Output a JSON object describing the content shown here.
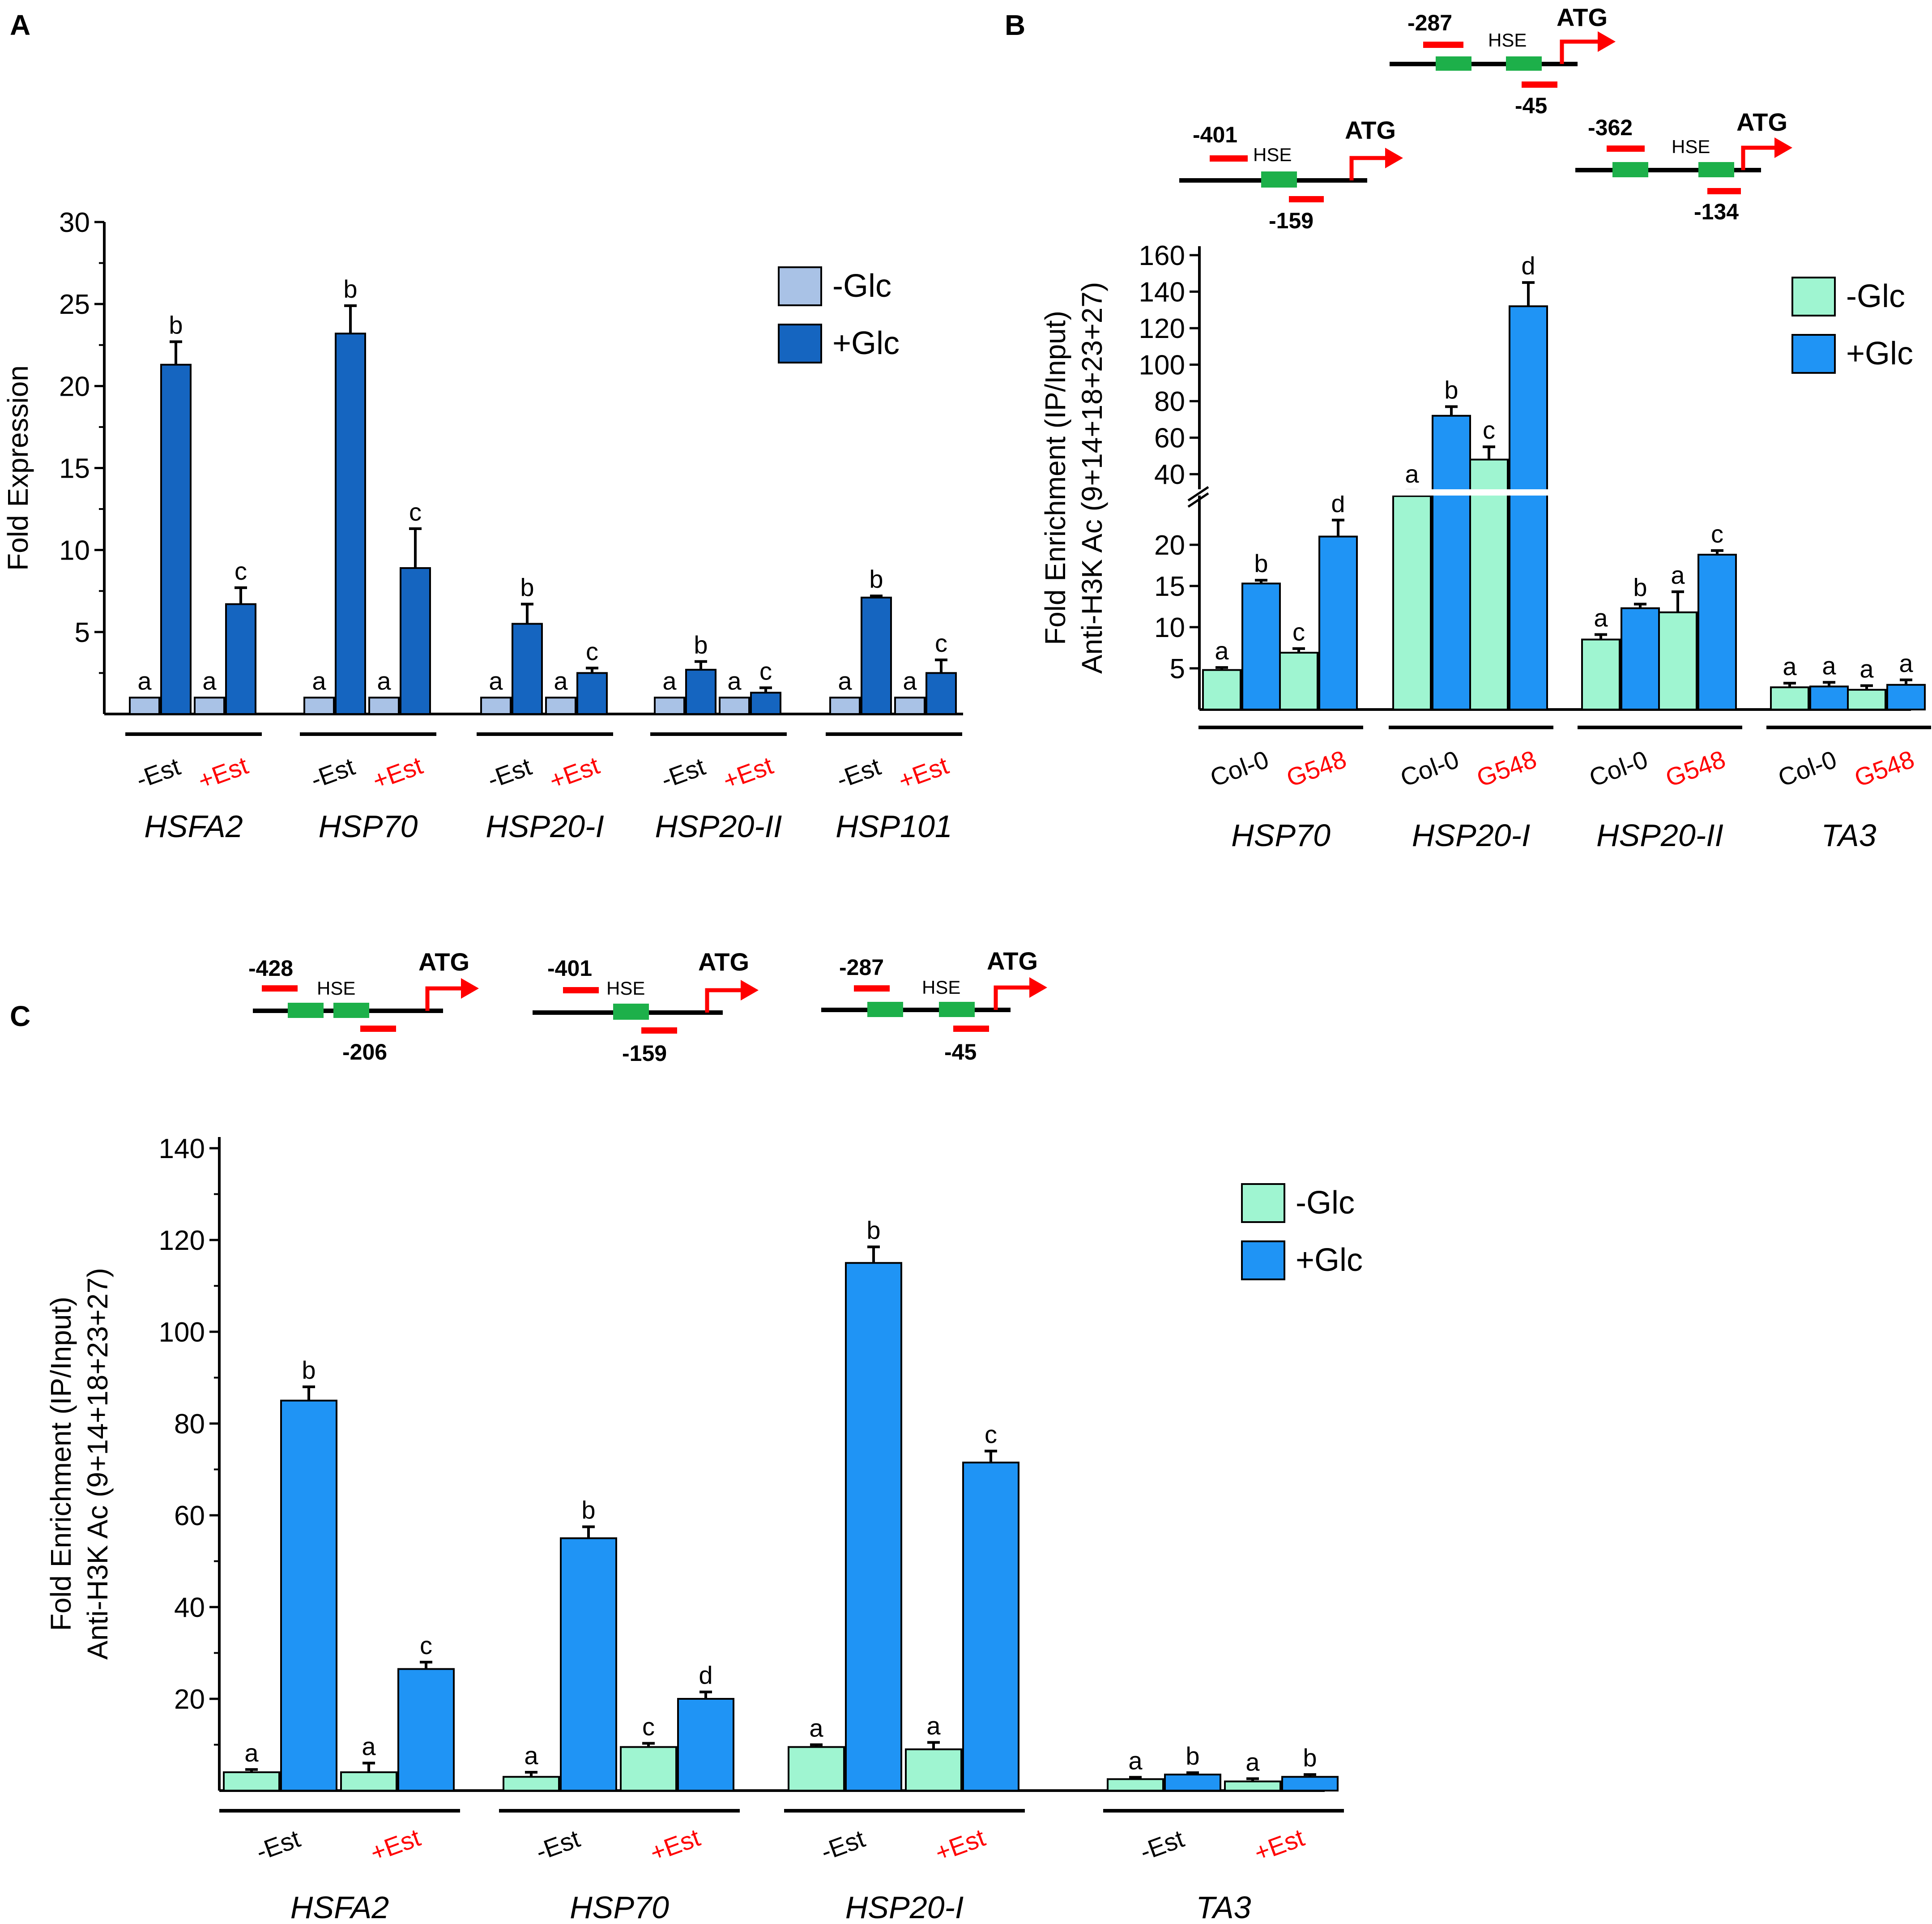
{
  "panels": {
    "A": {
      "label": "A"
    },
    "B": {
      "label": "B"
    },
    "C": {
      "label": "C"
    }
  },
  "colors": {
    "a_minus": "#a9c2e6",
    "a_plus": "#1565c0",
    "bc_minus": "#9ff5d1",
    "bc_plus": "#1f94f5",
    "red": "#ff0000",
    "green": "#1db04a"
  },
  "icons": [
    "tss-arrow-icon",
    "hse-box-icon",
    "primer-bar-icon"
  ],
  "schematics": {
    "b1": {
      "left": "-401",
      "right": "-159",
      "hse": "HSE",
      "atg": "ATG"
    },
    "b2": {
      "left": "-287",
      "right": "-45",
      "hse": "HSE",
      "atg": "ATG"
    },
    "b3": {
      "left": "-362",
      "right": "-134",
      "hse": "HSE",
      "atg": "ATG"
    },
    "c1": {
      "left": "-428",
      "right": "-206",
      "hse": "HSE",
      "atg": "ATG"
    },
    "c2": {
      "left": "-401",
      "right": "-159",
      "hse": "HSE",
      "atg": "ATG"
    },
    "c3": {
      "left": "-287",
      "right": "-45",
      "hse": "HSE",
      "atg": "ATG"
    }
  },
  "chart_data": [
    {
      "panel": "A",
      "type": "bar",
      "ylabel": "Fold Expression",
      "ylim": [
        0,
        30
      ],
      "yticks": [
        "5",
        "10",
        "15",
        "20",
        "25",
        "30"
      ],
      "legend": [
        "-Glc",
        "+Glc"
      ],
      "groups": [
        "HSFA2",
        "HSP70",
        "HSP20-I",
        "HSP20-II",
        "HSP101"
      ],
      "subgroups": [
        "-Est",
        "+Est"
      ],
      "series": [
        {
          "name": "-Glc",
          "values": [
            1,
            1,
            1,
            1,
            1,
            1,
            1,
            1,
            1,
            1
          ],
          "errors": [
            0,
            0,
            0,
            0,
            0,
            0,
            0,
            0,
            0,
            0
          ],
          "letters": [
            "a",
            "a",
            "a",
            "a",
            "a",
            "a",
            "a",
            "a",
            "a",
            "a"
          ]
        },
        {
          "name": "+Glc",
          "values": [
            21.3,
            6.7,
            23.2,
            8.9,
            5.5,
            2.5,
            2.7,
            1.3,
            7.1,
            2.5
          ],
          "errors": [
            1.4,
            1.0,
            1.7,
            2.4,
            1.2,
            0.3,
            0.5,
            0.3,
            0.1,
            0.8
          ],
          "letters": [
            "b",
            "c",
            "b",
            "c",
            "b",
            "c",
            "b",
            "c",
            "b",
            "c"
          ]
        }
      ]
    },
    {
      "panel": "B",
      "type": "bar",
      "ylabel": "Fold Enrichment (IP/Input)",
      "ylabel2": "Anti-H3K Ac (9+14+18+23+27)",
      "axis_break": true,
      "yticks_lower": [
        "5",
        "10",
        "15",
        "20"
      ],
      "yticks_upper": [
        "40",
        "60",
        "80",
        "100",
        "120",
        "140",
        "160"
      ],
      "legend": [
        "-Glc",
        "+Glc"
      ],
      "groups": [
        "HSP70",
        "HSP20-I",
        "HSP20-II",
        "TA3"
      ],
      "subgroups": [
        "Col-0",
        "G548"
      ],
      "series": [
        {
          "name": "-Glc",
          "values": [
            4.8,
            6.9,
            28,
            48,
            8.5,
            11.8,
            2.7,
            2.4
          ],
          "errors": [
            0.3,
            0.5,
            3,
            7,
            0.6,
            2.5,
            0.5,
            0.5
          ],
          "letters": [
            "a",
            "c",
            "a",
            "c",
            "a",
            "a",
            "a",
            "a"
          ]
        },
        {
          "name": "+Glc",
          "values": [
            15.3,
            21,
            72,
            132,
            12.3,
            18.8,
            2.8,
            3
          ],
          "errors": [
            0.4,
            2,
            5,
            13,
            0.5,
            0.5,
            0.5,
            0.6
          ],
          "letters": [
            "b",
            "d",
            "b",
            "d",
            "b",
            "c",
            "a",
            "a"
          ]
        }
      ]
    },
    {
      "panel": "C",
      "type": "bar",
      "ylabel": "Fold Enrichment (IP/Input)",
      "ylabel2": "Anti-H3K Ac (9+14+18+23+27)",
      "ylim": [
        0,
        140
      ],
      "yticks": [
        "20",
        "40",
        "60",
        "80",
        "100",
        "120",
        "140"
      ],
      "legend": [
        "-Glc",
        "+Glc"
      ],
      "groups": [
        "HSFA2",
        "HSP70",
        "HSP20-I",
        "TA3"
      ],
      "subgroups": [
        "-Est",
        "+Est"
      ],
      "series": [
        {
          "name": "-Glc",
          "values": [
            4,
            4,
            3,
            9.5,
            9.5,
            9,
            2.5,
            2
          ],
          "errors": [
            0.6,
            2,
            1,
            0.8,
            0.5,
            1.5,
            0.4,
            0.6
          ],
          "letters": [
            "a",
            "a",
            "a",
            "c",
            "a",
            "a",
            "a",
            "a"
          ]
        },
        {
          "name": "+Glc",
          "values": [
            85,
            26.5,
            55,
            20,
            115,
            71.5,
            3.5,
            3
          ],
          "errors": [
            3,
            1.5,
            2.5,
            1.5,
            3.5,
            2.5,
            0.4,
            0.5
          ],
          "letters": [
            "b",
            "c",
            "b",
            "d",
            "b",
            "c",
            "b",
            "b"
          ]
        }
      ]
    }
  ]
}
